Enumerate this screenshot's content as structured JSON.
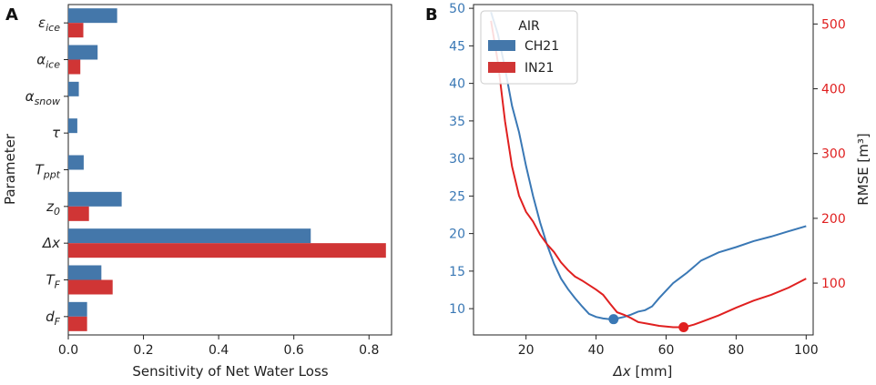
{
  "chart_data": [
    {
      "panel": "A",
      "type": "bar",
      "orientation": "horizontal",
      "ylabel": "Parameter",
      "xlabel": "Sensitivity of Net Water Loss",
      "categories": [
        {
          "base": "ε",
          "sub": "ice"
        },
        {
          "base": "α",
          "sub": "ice"
        },
        {
          "base": "α",
          "sub": "snow"
        },
        {
          "base": "τ",
          "sub": ""
        },
        {
          "base": "T",
          "sub": "ppt"
        },
        {
          "base": "z",
          "sub": "0"
        },
        {
          "base": "Δx",
          "sub": ""
        },
        {
          "base": "T",
          "sub": "F"
        },
        {
          "base": "d",
          "sub": "F"
        }
      ],
      "series": [
        {
          "name": "CH21",
          "color": "#4477aa",
          "values": [
            0.13,
            0.078,
            0.028,
            0.024,
            0.041,
            0.142,
            0.645,
            0.088,
            0.05
          ]
        },
        {
          "name": "IN21",
          "color": "#d03535",
          "values": [
            0.04,
            0.032,
            0.0,
            0.0,
            0.0,
            0.055,
            0.845,
            0.118,
            0.05
          ]
        }
      ],
      "xlim": [
        0,
        0.86
      ],
      "xticks": [
        "0.0",
        "0.2",
        "0.4",
        "0.6",
        "0.8"
      ]
    },
    {
      "panel": "B",
      "type": "line",
      "xlabel": "Δx [mm]",
      "ylabel_right": "RMSE [m³]",
      "xlim": [
        5,
        102
      ],
      "xticks": [
        "20",
        "40",
        "60",
        "80",
        "100"
      ],
      "ylim_left": [
        6.5,
        50.5
      ],
      "yticks_left": [
        "10",
        "15",
        "20",
        "25",
        "30",
        "35",
        "40",
        "45",
        "50"
      ],
      "ylim_right": [
        20,
        530
      ],
      "yticks_right": [
        "100",
        "200",
        "300",
        "400",
        "500"
      ],
      "legend": {
        "title": "AIR",
        "location": "top-left",
        "entries": [
          "CH21",
          "IN21"
        ]
      },
      "series": [
        {
          "name": "CH21",
          "axis": "left",
          "color": "#3a78b5",
          "x": [
            10,
            12,
            14,
            16,
            18,
            20,
            22,
            24,
            26,
            28,
            30,
            32,
            34,
            36,
            38,
            40,
            42,
            44,
            45,
            46,
            48,
            50,
            52,
            54,
            56,
            58,
            60,
            62,
            64,
            66,
            68,
            70,
            75,
            80,
            85,
            90,
            95,
            100
          ],
          "y": [
            49.5,
            46.5,
            42.0,
            37.0,
            33.5,
            29.0,
            25.0,
            21.5,
            18.5,
            16.0,
            14.0,
            12.6,
            11.4,
            10.3,
            9.3,
            8.9,
            8.7,
            8.6,
            8.6,
            8.7,
            8.9,
            9.2,
            9.6,
            9.8,
            10.3,
            11.4,
            12.4,
            13.4,
            14.1,
            14.8,
            15.6,
            16.4,
            17.5,
            18.2,
            19.0,
            19.6,
            20.3,
            21.0
          ],
          "marker": {
            "x": 45,
            "y": 8.6
          }
        },
        {
          "name": "IN21",
          "axis": "right",
          "color": "#e02020",
          "x": [
            10,
            12,
            14,
            16,
            18,
            20,
            22,
            24,
            26,
            28,
            30,
            32,
            34,
            36,
            38,
            40,
            42,
            44,
            46,
            48,
            50,
            52,
            55,
            58,
            60,
            62,
            64,
            65,
            66,
            68,
            70,
            75,
            80,
            85,
            90,
            95,
            100
          ],
          "y": [
            505,
            440,
            350,
            280,
            235,
            210,
            195,
            175,
            160,
            148,
            132,
            120,
            110,
            104,
            97,
            90,
            82,
            68,
            55,
            51,
            46,
            40,
            37,
            34,
            33,
            32,
            32,
            32,
            33,
            36,
            40,
            50,
            62,
            73,
            82,
            93,
            107
          ],
          "marker": {
            "x": 65,
            "y": 32
          }
        }
      ]
    }
  ],
  "labels": {
    "panel_a": "A",
    "panel_b": "B",
    "a_xlabel": "Sensitivity of Net Water Loss",
    "a_ylabel": "Parameter",
    "b_xlabel_base": "Δx",
    "b_xlabel_unit": "[mm]",
    "b_ylabel_right": "RMSE [m³]",
    "legend_title": "AIR",
    "legend_ch21": "CH21",
    "legend_in21": "IN21"
  }
}
